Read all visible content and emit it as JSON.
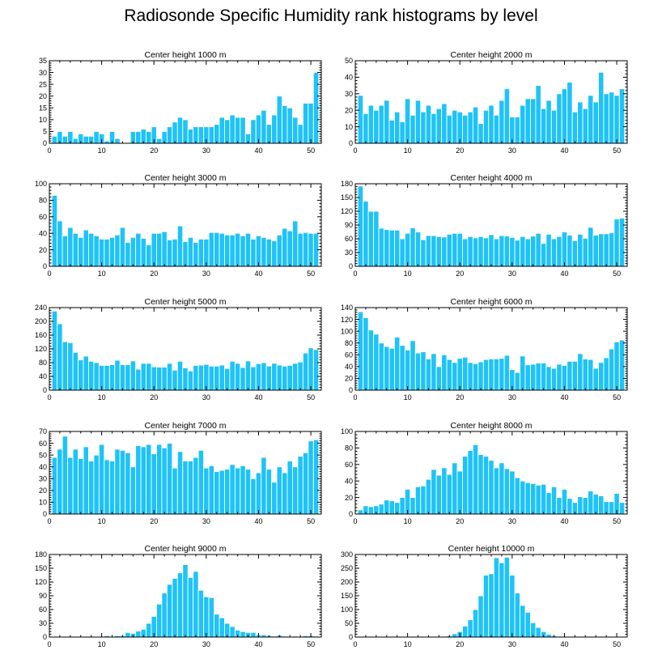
{
  "title": "Radiosonde Specific Humidity rank histograms by level",
  "colors": {
    "bar": "#1ec3f7",
    "bar_edge": "#ffffff",
    "axis": "#000000"
  },
  "chart_data": [
    {
      "type": "bar",
      "title": "Center height 1000 m",
      "xlim": [
        0,
        52
      ],
      "xticks": [
        0,
        10,
        20,
        30,
        40,
        50
      ],
      "ylim": [
        0,
        35
      ],
      "yticks": [
        0,
        5,
        10,
        15,
        20,
        25,
        30,
        35
      ],
      "x": [
        1,
        2,
        3,
        4,
        5,
        6,
        7,
        8,
        9,
        10,
        11,
        12,
        13,
        14,
        15,
        16,
        17,
        18,
        19,
        20,
        21,
        22,
        23,
        24,
        25,
        26,
        27,
        28,
        29,
        30,
        31,
        32,
        33,
        34,
        35,
        36,
        37,
        38,
        39,
        40,
        41,
        42,
        43,
        44,
        45,
        46,
        47,
        48,
        49,
        50,
        51
      ],
      "values": [
        3,
        5,
        3,
        5,
        2,
        4,
        3,
        3,
        5,
        4,
        1,
        5,
        2,
        0,
        0,
        5,
        5,
        6,
        5,
        7,
        2,
        5,
        7,
        9,
        11,
        10,
        6,
        7,
        7,
        7,
        7,
        8,
        11,
        10,
        12,
        11,
        11,
        4,
        10,
        12,
        14,
        8,
        12,
        20,
        16,
        15,
        11,
        8,
        17,
        17,
        30
      ]
    },
    {
      "type": "bar",
      "title": "Center height 2000 m",
      "xlim": [
        0,
        52
      ],
      "xticks": [
        0,
        10,
        20,
        30,
        40,
        50
      ],
      "ylim": [
        0,
        50
      ],
      "yticks": [
        0,
        10,
        20,
        30,
        40,
        50
      ],
      "x": [
        1,
        2,
        3,
        4,
        5,
        6,
        7,
        8,
        9,
        10,
        11,
        12,
        13,
        14,
        15,
        16,
        17,
        18,
        19,
        20,
        21,
        22,
        23,
        24,
        25,
        26,
        27,
        28,
        29,
        30,
        31,
        32,
        33,
        34,
        35,
        36,
        37,
        38,
        39,
        40,
        41,
        42,
        43,
        44,
        45,
        46,
        47,
        48,
        49,
        50,
        51
      ],
      "values": [
        29,
        18,
        23,
        20,
        23,
        26,
        14,
        19,
        13,
        27,
        17,
        26,
        19,
        23,
        18,
        21,
        24,
        17,
        20,
        19,
        17,
        19,
        22,
        12,
        20,
        23,
        17,
        26,
        33,
        16,
        16,
        23,
        27,
        27,
        35,
        21,
        26,
        20,
        30,
        33,
        37,
        19,
        25,
        21,
        29,
        25,
        43,
        30,
        31,
        29,
        33
      ]
    },
    {
      "type": "bar",
      "title": "Center height 3000 m",
      "xlim": [
        0,
        52
      ],
      "xticks": [
        0,
        10,
        20,
        30,
        40,
        50
      ],
      "ylim": [
        0,
        100
      ],
      "yticks": [
        0,
        20,
        40,
        60,
        80,
        100
      ],
      "x": [
        1,
        2,
        3,
        4,
        5,
        6,
        7,
        8,
        9,
        10,
        11,
        12,
        13,
        14,
        15,
        16,
        17,
        18,
        19,
        20,
        21,
        22,
        23,
        24,
        25,
        26,
        27,
        28,
        29,
        30,
        31,
        32,
        33,
        34,
        35,
        36,
        37,
        38,
        39,
        40,
        41,
        42,
        43,
        44,
        45,
        46,
        47,
        48,
        49,
        50,
        51
      ],
      "values": [
        86,
        55,
        37,
        47,
        40,
        35,
        44,
        40,
        37,
        33,
        33,
        35,
        38,
        47,
        29,
        35,
        40,
        34,
        26,
        40,
        40,
        42,
        32,
        33,
        49,
        30,
        35,
        29,
        33,
        33,
        41,
        41,
        40,
        38,
        38,
        40,
        37,
        40,
        33,
        37,
        35,
        33,
        31,
        38,
        46,
        43,
        55,
        40,
        41,
        40,
        40
      ]
    },
    {
      "type": "bar",
      "title": "Center height 4000 m",
      "xlim": [
        0,
        52
      ],
      "xticks": [
        0,
        10,
        20,
        30,
        40,
        50
      ],
      "ylim": [
        0,
        180
      ],
      "yticks": [
        0,
        30,
        60,
        90,
        120,
        150,
        180
      ],
      "x": [
        1,
        2,
        3,
        4,
        5,
        6,
        7,
        8,
        9,
        10,
        11,
        12,
        13,
        14,
        15,
        16,
        17,
        18,
        19,
        20,
        21,
        22,
        23,
        24,
        25,
        26,
        27,
        28,
        29,
        30,
        31,
        32,
        33,
        34,
        35,
        36,
        37,
        38,
        39,
        40,
        41,
        42,
        43,
        44,
        45,
        46,
        47,
        48,
        49,
        50,
        51
      ],
      "values": [
        175,
        142,
        120,
        120,
        83,
        80,
        79,
        79,
        60,
        72,
        84,
        75,
        58,
        67,
        67,
        65,
        64,
        70,
        72,
        72,
        60,
        65,
        62,
        65,
        62,
        69,
        60,
        67,
        66,
        63,
        57,
        65,
        60,
        66,
        72,
        50,
        70,
        60,
        65,
        75,
        68,
        56,
        70,
        61,
        85,
        68,
        71,
        71,
        73,
        103,
        105
      ]
    },
    {
      "type": "bar",
      "title": "Center height 5000 m",
      "xlim": [
        0,
        52
      ],
      "xticks": [
        0,
        10,
        20,
        30,
        40,
        50
      ],
      "ylim": [
        0,
        240
      ],
      "yticks": [
        0,
        40,
        80,
        120,
        160,
        200,
        240
      ],
      "x": [
        1,
        2,
        3,
        4,
        5,
        6,
        7,
        8,
        9,
        10,
        11,
        12,
        13,
        14,
        15,
        16,
        17,
        18,
        19,
        20,
        21,
        22,
        23,
        24,
        25,
        26,
        27,
        28,
        29,
        30,
        31,
        32,
        33,
        34,
        35,
        36,
        37,
        38,
        39,
        40,
        41,
        42,
        43,
        44,
        45,
        46,
        47,
        48,
        49,
        50,
        51
      ],
      "values": [
        230,
        193,
        141,
        138,
        110,
        88,
        99,
        84,
        80,
        72,
        72,
        74,
        87,
        74,
        74,
        85,
        61,
        78,
        78,
        68,
        67,
        67,
        78,
        58,
        84,
        65,
        56,
        72,
        73,
        75,
        70,
        70,
        73,
        63,
        84,
        78,
        66,
        85,
        68,
        77,
        80,
        70,
        78,
        73,
        70,
        72,
        78,
        82,
        108,
        123,
        118
      ]
    },
    {
      "type": "bar",
      "title": "Center height 6000 m",
      "xlim": [
        0,
        52
      ],
      "xticks": [
        0,
        10,
        20,
        30,
        40,
        50
      ],
      "ylim": [
        0,
        140
      ],
      "yticks": [
        0,
        20,
        40,
        60,
        80,
        100,
        120,
        140
      ],
      "x": [
        1,
        2,
        3,
        4,
        5,
        6,
        7,
        8,
        9,
        10,
        11,
        12,
        13,
        14,
        15,
        16,
        17,
        18,
        19,
        20,
        21,
        22,
        23,
        24,
        25,
        26,
        27,
        28,
        29,
        30,
        31,
        32,
        33,
        34,
        35,
        36,
        37,
        38,
        39,
        40,
        41,
        42,
        43,
        44,
        45,
        46,
        47,
        48,
        49,
        50,
        51
      ],
      "values": [
        133,
        123,
        102,
        95,
        80,
        74,
        71,
        90,
        76,
        68,
        84,
        63,
        65,
        53,
        62,
        40,
        60,
        52,
        47,
        54,
        56,
        47,
        45,
        48,
        52,
        53,
        53,
        54,
        59,
        35,
        30,
        58,
        43,
        44,
        46,
        46,
        40,
        37,
        44,
        42,
        49,
        49,
        62,
        53,
        52,
        37,
        47,
        55,
        70,
        82,
        85
      ]
    },
    {
      "type": "bar",
      "title": "Center height 7000 m",
      "xlim": [
        0,
        52
      ],
      "xticks": [
        0,
        10,
        20,
        30,
        40,
        50
      ],
      "ylim": [
        0,
        70
      ],
      "yticks": [
        0,
        10,
        20,
        30,
        40,
        50,
        60,
        70
      ],
      "x": [
        1,
        2,
        3,
        4,
        5,
        6,
        7,
        8,
        9,
        10,
        11,
        12,
        13,
        14,
        15,
        16,
        17,
        18,
        19,
        20,
        21,
        22,
        23,
        24,
        25,
        26,
        27,
        28,
        29,
        30,
        31,
        32,
        33,
        34,
        35,
        36,
        37,
        38,
        39,
        40,
        41,
        42,
        43,
        44,
        45,
        46,
        47,
        48,
        49,
        50,
        51
      ],
      "values": [
        48,
        55,
        66,
        48,
        55,
        47,
        57,
        45,
        50,
        59,
        46,
        45,
        55,
        54,
        52,
        40,
        58,
        57,
        59,
        51,
        59,
        56,
        60,
        39,
        53,
        45,
        45,
        48,
        54,
        39,
        41,
        36,
        37,
        38,
        42,
        39,
        41,
        38,
        30,
        35,
        48,
        38,
        27,
        40,
        35,
        45,
        40,
        49,
        52,
        62,
        63
      ]
    },
    {
      "type": "bar",
      "title": "Center height 8000 m",
      "xlim": [
        0,
        52
      ],
      "xticks": [
        0,
        10,
        20,
        30,
        40,
        50
      ],
      "ylim": [
        0,
        100
      ],
      "yticks": [
        0,
        20,
        40,
        60,
        80,
        100
      ],
      "x": [
        1,
        2,
        3,
        4,
        5,
        6,
        7,
        8,
        9,
        10,
        11,
        12,
        13,
        14,
        15,
        16,
        17,
        18,
        19,
        20,
        21,
        22,
        23,
        24,
        25,
        26,
        27,
        28,
        29,
        30,
        31,
        32,
        33,
        34,
        35,
        36,
        37,
        38,
        39,
        40,
        41,
        42,
        43,
        44,
        45,
        46,
        47,
        48,
        49,
        50,
        51
      ],
      "values": [
        5,
        10,
        9,
        10,
        12,
        17,
        16,
        14,
        20,
        30,
        20,
        33,
        34,
        42,
        54,
        47,
        56,
        48,
        62,
        52,
        70,
        77,
        84,
        72,
        70,
        65,
        56,
        62,
        55,
        52,
        44,
        40,
        38,
        37,
        35,
        36,
        26,
        33,
        20,
        30,
        19,
        14,
        21,
        20,
        28,
        24,
        22,
        15,
        15,
        25,
        14
      ]
    },
    {
      "type": "bar",
      "title": "Center height 9000 m",
      "xlim": [
        0,
        52
      ],
      "xticks": [
        0,
        10,
        20,
        30,
        40,
        50
      ],
      "ylim": [
        0,
        180
      ],
      "yticks": [
        0,
        30,
        60,
        90,
        120,
        150,
        180
      ],
      "x": [
        1,
        2,
        3,
        4,
        5,
        6,
        7,
        8,
        9,
        10,
        11,
        12,
        13,
        14,
        15,
        16,
        17,
        18,
        19,
        20,
        21,
        22,
        23,
        24,
        25,
        26,
        27,
        28,
        29,
        30,
        31,
        32,
        33,
        34,
        35,
        36,
        37,
        38,
        39,
        40,
        41,
        42,
        43,
        44,
        45,
        46,
        47,
        48,
        49,
        50,
        51
      ],
      "values": [
        0,
        0,
        0,
        0,
        0,
        0,
        0,
        0,
        0,
        0,
        3,
        0,
        3,
        3,
        10,
        8,
        13,
        17,
        30,
        45,
        72,
        96,
        115,
        128,
        140,
        158,
        130,
        143,
        102,
        88,
        86,
        50,
        42,
        30,
        23,
        15,
        12,
        10,
        10,
        5,
        5,
        3,
        2,
        4,
        2,
        0,
        2,
        0,
        3,
        3,
        2
      ]
    },
    {
      "type": "bar",
      "title": "Center height 10000 m",
      "xlim": [
        0,
        52
      ],
      "xticks": [
        0,
        10,
        20,
        30,
        40,
        50
      ],
      "ylim": [
        0,
        300
      ],
      "yticks": [
        0,
        50,
        100,
        150,
        200,
        250,
        300
      ],
      "x": [
        1,
        2,
        3,
        4,
        5,
        6,
        7,
        8,
        9,
        10,
        11,
        12,
        13,
        14,
        15,
        16,
        17,
        18,
        19,
        20,
        21,
        22,
        23,
        24,
        25,
        26,
        27,
        28,
        29,
        30,
        31,
        32,
        33,
        34,
        35,
        36,
        37,
        38,
        39,
        40,
        41,
        42,
        43,
        44,
        45,
        46,
        47,
        48,
        49,
        50,
        51
      ],
      "values": [
        0,
        0,
        0,
        0,
        0,
        0,
        0,
        0,
        0,
        0,
        0,
        0,
        0,
        0,
        0,
        3,
        3,
        5,
        12,
        20,
        40,
        63,
        100,
        150,
        225,
        230,
        288,
        270,
        290,
        225,
        160,
        115,
        90,
        52,
        35,
        20,
        10,
        5,
        3,
        2,
        0,
        2,
        2,
        2,
        2,
        0,
        0,
        0,
        0,
        0,
        0
      ]
    }
  ]
}
